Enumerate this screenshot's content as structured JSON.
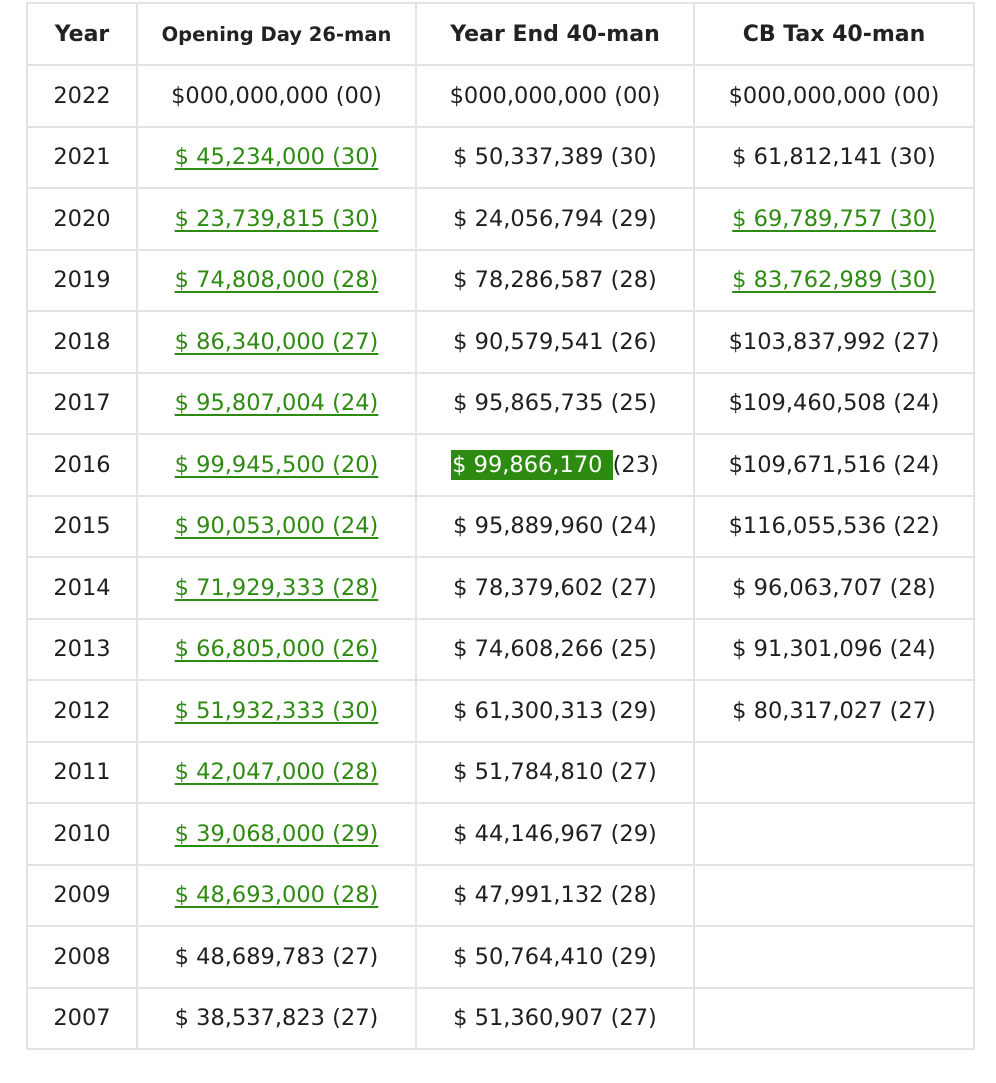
{
  "table": {
    "headers": [
      "Year",
      "Opening Day 26-man",
      "Year End 40-man",
      "CB Tax 40-man"
    ],
    "rows": [
      {
        "year": "2022",
        "opening": "$000,000,000 (00)",
        "opening_link": false,
        "year_end": "$000,000,000 (00)",
        "cb_tax": "$000,000,000 (00)",
        "cb_tax_link": false
      },
      {
        "year": "2021",
        "opening": "$ 45,234,000 (30)",
        "opening_link": true,
        "year_end": "$ 50,337,389 (30)",
        "cb_tax": "$ 61,812,141 (30)",
        "cb_tax_link": false
      },
      {
        "year": "2020",
        "opening": "$ 23,739,815 (30)",
        "opening_link": true,
        "year_end": "$ 24,056,794 (29)",
        "cb_tax": "$ 69,789,757 (30)",
        "cb_tax_link": true
      },
      {
        "year": "2019",
        "opening": "$ 74,808,000 (28)",
        "opening_link": true,
        "year_end": "$ 78,286,587 (28)",
        "cb_tax": "$ 83,762,989 (30)",
        "cb_tax_link": true
      },
      {
        "year": "2018",
        "opening": "$ 86,340,000 (27)",
        "opening_link": true,
        "year_end": "$ 90,579,541 (26)",
        "cb_tax": "$103,837,992 (27)",
        "cb_tax_link": false
      },
      {
        "year": "2017",
        "opening": "$ 95,807,004 (24)",
        "opening_link": true,
        "year_end": "$ 95,865,735 (25)",
        "cb_tax": "$109,460,508 (24)",
        "cb_tax_link": false
      },
      {
        "year": "2016",
        "opening": "$ 99,945,500 (20)",
        "opening_link": true,
        "year_end_highlight": "$ 99,866,170 ",
        "year_end_rest": "(23)",
        "cb_tax": "$109,671,516 (24)",
        "cb_tax_link": false
      },
      {
        "year": "2015",
        "opening": "$ 90,053,000 (24)",
        "opening_link": true,
        "year_end": "$ 95,889,960 (24)",
        "cb_tax": "$116,055,536 (22)",
        "cb_tax_link": false
      },
      {
        "year": "2014",
        "opening": "$ 71,929,333 (28)",
        "opening_link": true,
        "year_end": "$ 78,379,602 (27)",
        "cb_tax": "$ 96,063,707 (28)",
        "cb_tax_link": false
      },
      {
        "year": "2013",
        "opening": "$ 66,805,000 (26)",
        "opening_link": true,
        "year_end": "$ 74,608,266 (25)",
        "cb_tax": "$ 91,301,096 (24)",
        "cb_tax_link": false
      },
      {
        "year": "2012",
        "opening": "$ 51,932,333 (30)",
        "opening_link": true,
        "year_end": "$ 61,300,313 (29)",
        "cb_tax": "$ 80,317,027 (27)",
        "cb_tax_link": false
      },
      {
        "year": "2011",
        "opening": "$ 42,047,000 (28)",
        "opening_link": true,
        "year_end": "$ 51,784,810 (27)",
        "cb_tax": "",
        "cb_tax_link": false
      },
      {
        "year": "2010",
        "opening": "$ 39,068,000 (29)",
        "opening_link": true,
        "year_end": "$ 44,146,967 (29)",
        "cb_tax": "",
        "cb_tax_link": false
      },
      {
        "year": "2009",
        "opening": "$ 48,693,000 (28)",
        "opening_link": true,
        "year_end": "$ 47,991,132 (28)",
        "cb_tax": "",
        "cb_tax_link": false
      },
      {
        "year": "2008",
        "opening": "$ 48,689,783 (27)",
        "opening_link": false,
        "year_end": "$ 50,764,410 (29)",
        "cb_tax": "",
        "cb_tax_link": false
      },
      {
        "year": "2007",
        "opening": "$ 38,537,823 (27)",
        "opening_link": false,
        "year_end": "$ 51,360,907 (27)",
        "cb_tax": "",
        "cb_tax_link": false
      }
    ]
  },
  "colors": {
    "link": "#2e8b12",
    "highlight_bg": "#2e8b12",
    "border": "#e3e3e3",
    "text": "#1f1f1f"
  }
}
